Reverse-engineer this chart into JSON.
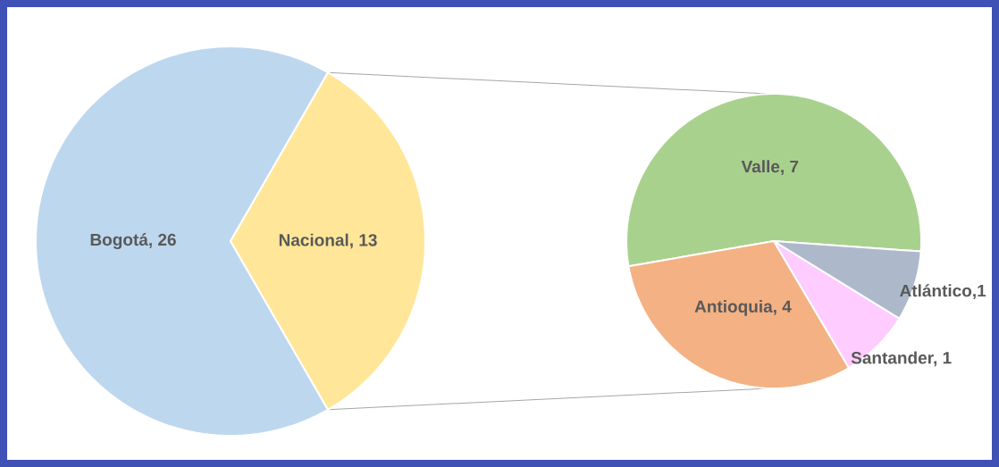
{
  "chart_data": [
    {
      "type": "pie",
      "categories": [
        "Bogotá, 26",
        "Nacional, 13"
      ],
      "values": [
        26,
        13
      ],
      "colors": [
        "#bdd7ee",
        "#ffe699"
      ]
    },
    {
      "type": "pie",
      "categories": [
        "Valle, 7",
        "Antioquia, 4",
        "Santander, 1",
        "Atlántico,1"
      ],
      "values": [
        7,
        4,
        1,
        1
      ],
      "colors": [
        "#a9d18e",
        "#f4b183",
        "#ffccff",
        "#adb9ca"
      ]
    }
  ]
}
